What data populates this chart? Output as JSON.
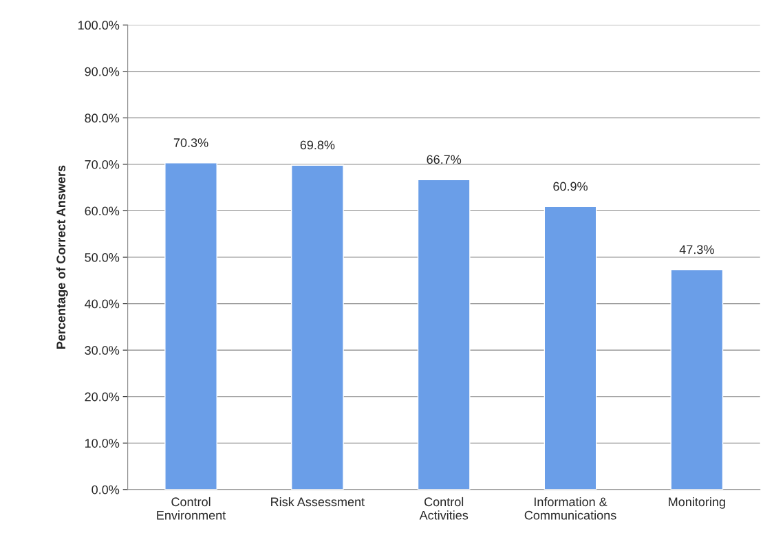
{
  "chart_data": {
    "type": "bar",
    "ylabel": "Percentage of Correct Answers",
    "categories": [
      "Control\nEnvironment",
      "Risk Assessment",
      "Control\nActivities",
      "Information &\nCommunications",
      "Monitoring"
    ],
    "values": [
      70.3,
      69.8,
      66.7,
      60.9,
      47.3
    ],
    "value_labels": [
      "70.3%",
      "69.8%",
      "66.7%",
      "60.9%",
      "47.3%"
    ],
    "color": "#6a9ee8",
    "ylim": [
      0,
      100
    ],
    "yticks": [
      {
        "value": 0,
        "label": "0.0%"
      },
      {
        "value": 10,
        "label": "10.0%"
      },
      {
        "value": 20,
        "label": "20.0%"
      },
      {
        "value": 30,
        "label": "30.0%"
      },
      {
        "value": 40,
        "label": "40.0%"
      },
      {
        "value": 50,
        "label": "50.0%"
      },
      {
        "value": 60,
        "label": "60.0%"
      },
      {
        "value": 70,
        "label": "70.0%"
      },
      {
        "value": 80,
        "label": "80.0%"
      },
      {
        "value": 90,
        "label": "90.0%"
      },
      {
        "value": 100,
        "label": "100.0%"
      }
    ],
    "grid": "y",
    "legend": false
  }
}
